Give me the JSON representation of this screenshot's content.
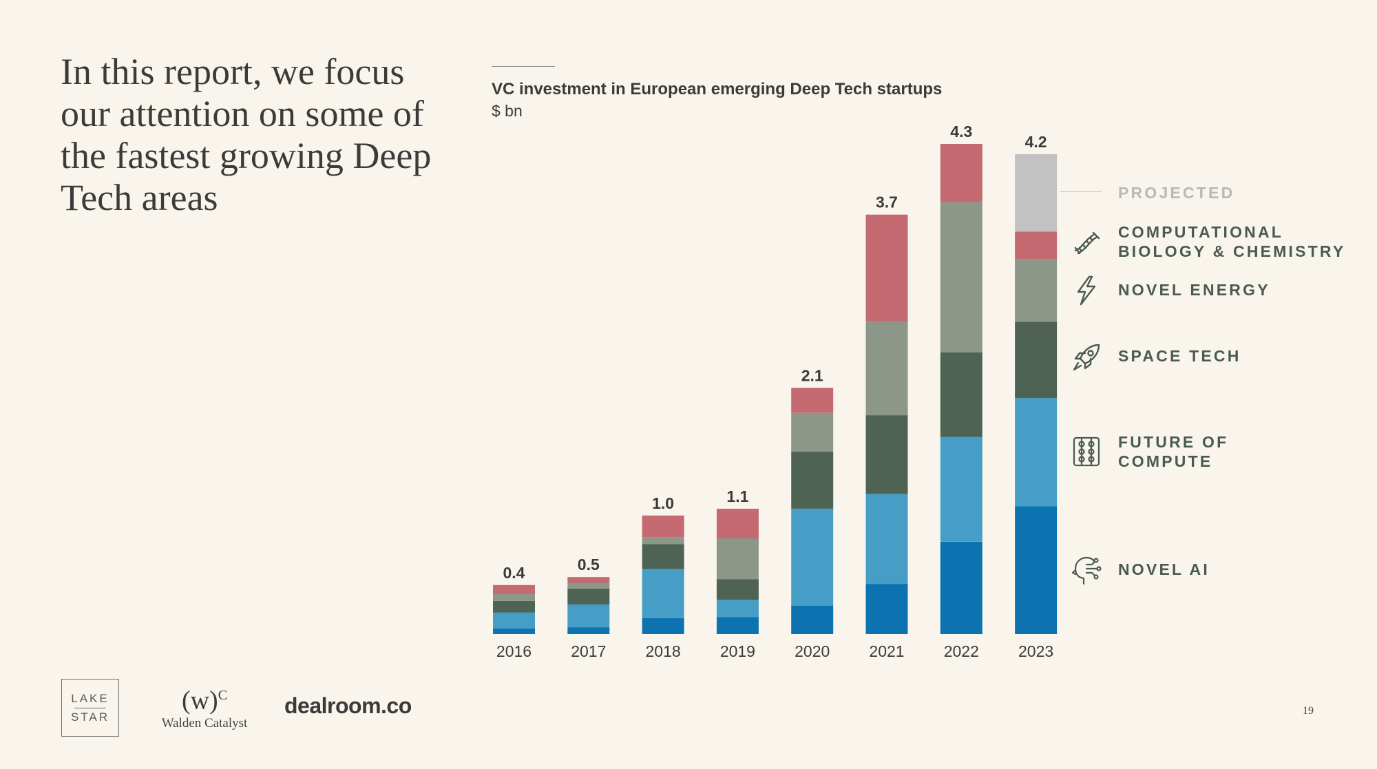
{
  "headline": "In this report, we focus our attention on some of the fastest growing Deep Tech areas",
  "page_number": "19",
  "logos": {
    "lake_star_top": "LAKE",
    "lake_star_bottom": "STAR",
    "walden_mark": "(w)",
    "walden_mark_sup": "C",
    "walden_name": "Walden Catalyst",
    "dealroom": "dealroom.co"
  },
  "legend": [
    {
      "key": "projected",
      "label": "PROJECTED",
      "icon": "none"
    },
    {
      "key": "bio",
      "label": "COMPUTATIONAL\nBIOLOGY & CHEMISTRY",
      "icon": "dna-icon"
    },
    {
      "key": "energy",
      "label": "NOVEL ENERGY",
      "icon": "lightning-icon"
    },
    {
      "key": "space",
      "label": "SPACE TECH",
      "icon": "rocket-icon"
    },
    {
      "key": "compute",
      "label": "FUTURE OF\nCOMPUTE",
      "icon": "chip-icon"
    },
    {
      "key": "ai",
      "label": "NOVEL AI",
      "icon": "ai-head-icon"
    }
  ],
  "chart_data": {
    "type": "bar",
    "stacked": true,
    "title": "VC investment in European emerging Deep Tech startups",
    "unit": "$ bn",
    "categories": [
      "2016",
      "2017",
      "2018",
      "2019",
      "2020",
      "2021",
      "2022",
      "2023"
    ],
    "totals": [
      "0.4",
      "0.5",
      "1.0",
      "1.1",
      "2.1",
      "3.7",
      "4.3",
      "4.2"
    ],
    "ylim": [
      0,
      4.3
    ],
    "series": [
      {
        "name": "NOVEL AI",
        "color": "#0d72b0",
        "values": [
          0.05,
          0.06,
          0.14,
          0.15,
          0.25,
          0.44,
          0.81,
          1.12
        ]
      },
      {
        "name": "FUTURE OF COMPUTE",
        "color": "#469ec6",
        "values": [
          0.14,
          0.2,
          0.43,
          0.15,
          0.85,
          0.79,
          0.92,
          0.95
        ]
      },
      {
        "name": "SPACE TECH",
        "color": "#4e6354",
        "values": [
          0.1,
          0.14,
          0.22,
          0.18,
          0.5,
          0.69,
          0.74,
          0.67
        ]
      },
      {
        "name": "NOVEL ENERGY",
        "color": "#8c9689",
        "values": [
          0.06,
          0.05,
          0.06,
          0.36,
          0.34,
          0.82,
          1.32,
          0.55
        ]
      },
      {
        "name": "COMPUTATIONAL BIOLOGY & CHEMISTRY",
        "color": "#c46a70",
        "values": [
          0.08,
          0.05,
          0.19,
          0.26,
          0.22,
          0.94,
          0.51,
          0.24
        ]
      },
      {
        "name": "PROJECTED",
        "color": "#c2c2c2",
        "values": [
          0,
          0,
          0,
          0,
          0,
          0,
          0,
          0.68
        ]
      }
    ]
  }
}
